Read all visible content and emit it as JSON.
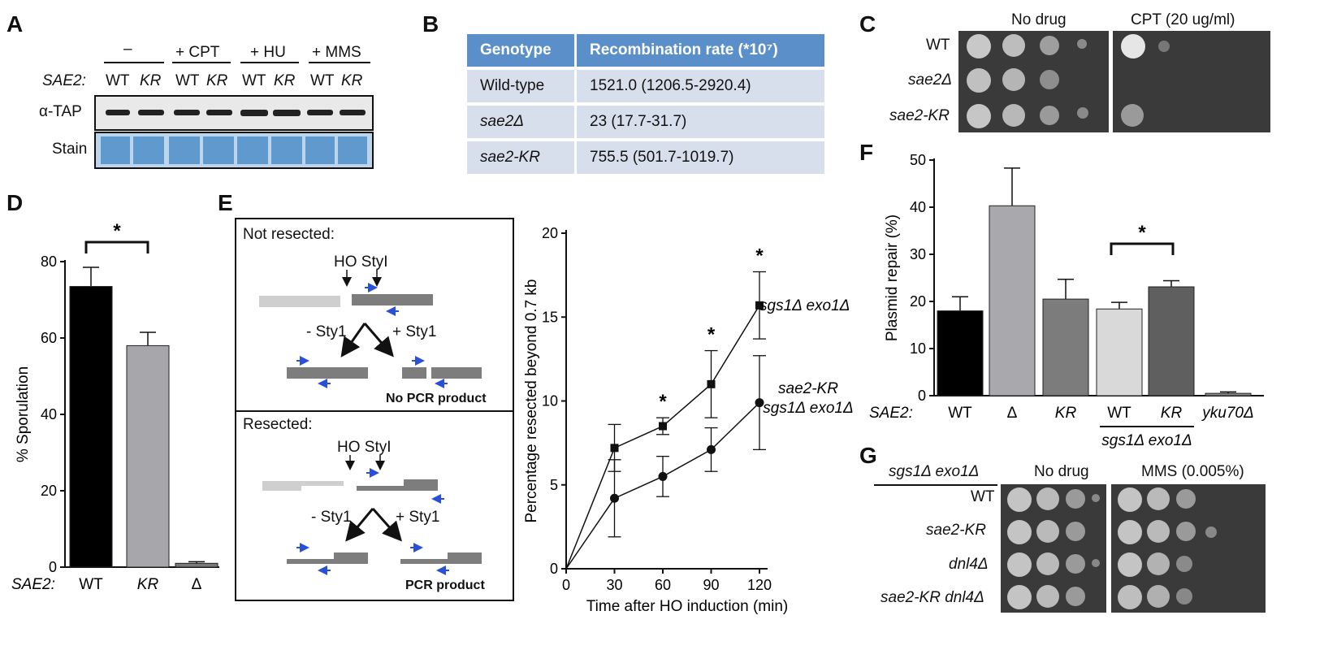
{
  "panel_labels": {
    "a": "A",
    "b": "B",
    "c": "C",
    "d": "D",
    "e": "E",
    "f": "F",
    "g": "G"
  },
  "panelA": {
    "conditions": [
      "–",
      "+ CPT",
      "+ HU",
      "+ MMS"
    ],
    "sae2_label": "SAE2:",
    "lanes": [
      "WT",
      "KR",
      "WT",
      "KR",
      "WT",
      "KR",
      "WT",
      "KR"
    ],
    "row1": "α-TAP",
    "row2": "Stain"
  },
  "panelB": {
    "headers": [
      "Genotype",
      "Recombination rate (*10⁷)"
    ],
    "rows": [
      [
        "Wild-type",
        "1521.0 (1206.5-2920.4)"
      ],
      [
        "sae2Δ",
        "23 (17.7-31.7)"
      ],
      [
        "sae2-KR",
        "755.5 (501.7-1019.7)"
      ]
    ]
  },
  "panelC": {
    "col_titles": [
      "No drug",
      "CPT (20 ug/ml)"
    ],
    "strains": [
      "WT",
      "sae2Δ",
      "sae2-KR"
    ]
  },
  "panelD": {
    "ylabel": "% Sporulation",
    "xprefix": "SAE2:",
    "star": "*",
    "chart_data": {
      "type": "bar",
      "categories": [
        "WT",
        "KR",
        "Δ"
      ],
      "values": [
        73.5,
        58,
        1
      ],
      "errors": [
        5,
        3.5,
        0.4
      ],
      "colors": [
        "#000000",
        "#a7a7ab",
        "#7a7a7a"
      ],
      "ylabel": "% Sporulation",
      "ylim": [
        0,
        80
      ],
      "yticks": [
        "0",
        "20",
        "40",
        "60",
        "80"
      ]
    }
  },
  "panelE": {
    "not_resected": "Not resected:",
    "resected": "Resected:",
    "ho_styi": "HO StyI",
    "minus_sty": "- Sty1",
    "plus_sty": "+ Sty1",
    "no_pcr": "No PCR product",
    "pcr": "PCR product",
    "chart_data": {
      "type": "line",
      "x": [
        0,
        30,
        60,
        90,
        120
      ],
      "xticks": [
        "0",
        "30",
        "60",
        "90",
        "120"
      ],
      "yticks": [
        "0",
        "5",
        "10",
        "15",
        "20"
      ],
      "xlabel": "Time after HO induction (min)",
      "ylabel": "Percentage resected beyond 0.7 kb",
      "xlim": [
        0,
        120
      ],
      "ylim": [
        0,
        20
      ],
      "series": [
        {
          "name": "sgs1Δ exo1Δ",
          "marker": "square",
          "values": [
            0,
            7.2,
            8.5,
            11,
            15.7
          ],
          "errors": [
            0,
            1.4,
            0.5,
            2,
            2
          ]
        },
        {
          "name_line1": "sae2-KR",
          "name_line2": "sgs1Δ exo1Δ",
          "marker": "circle",
          "values": [
            0,
            4.2,
            5.5,
            7.1,
            9.9
          ],
          "errors": [
            0,
            2.3,
            1.2,
            1.3,
            2.8
          ]
        }
      ],
      "stars_at": [
        60,
        90,
        120
      ],
      "star": "*"
    }
  },
  "panelF": {
    "ylabel": "Plasmid repair (%)",
    "xprefix": "SAE2:",
    "group_label": "sgs1Δ exo1Δ",
    "star": "*",
    "chart_data": {
      "type": "bar",
      "categories": [
        "WT",
        "Δ",
        "KR",
        "WT",
        "KR",
        "yku70Δ"
      ],
      "italic": [
        false,
        false,
        true,
        false,
        true,
        true
      ],
      "values": [
        18,
        40.3,
        20.5,
        18.4,
        23.1,
        0.5
      ],
      "errors": [
        3,
        8,
        4.2,
        1.4,
        1.3,
        0.3
      ],
      "colors": [
        "#000000",
        "#a9a9ad",
        "#7c7c7c",
        "#d9d9d9",
        "#5f5f5f",
        "#8a8a8a"
      ],
      "ylim": [
        0,
        50
      ],
      "yticks": [
        "0",
        "10",
        "20",
        "30",
        "40",
        "50"
      ]
    }
  },
  "panelG": {
    "genotype_header": "sgs1Δ exo1Δ",
    "col_titles": [
      "No drug",
      "MMS (0.005%)"
    ],
    "strains": [
      "WT",
      "sae2-KR",
      "dnl4Δ",
      "sae2-KR dnl4Δ"
    ]
  }
}
